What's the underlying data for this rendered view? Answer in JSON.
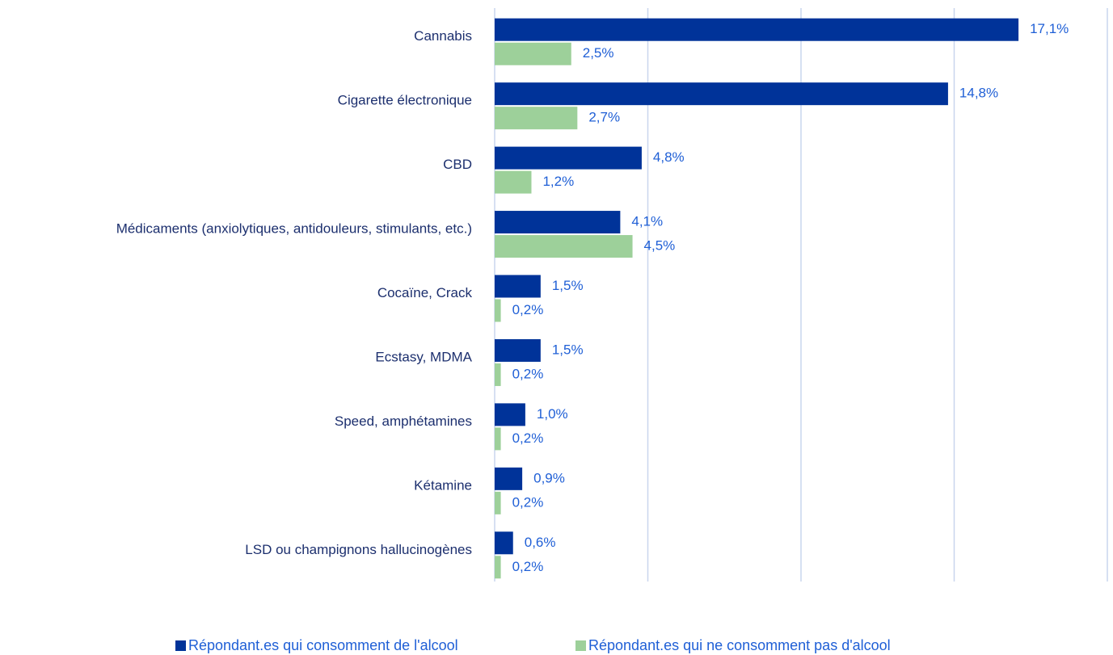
{
  "chart_data": {
    "type": "bar",
    "orientation": "horizontal",
    "categories": [
      "Cannabis",
      "Cigarette électronique",
      "CBD",
      "Médicaments (anxiolytiques, antidouleurs, stimulants, etc.)",
      "Cocaïne, Crack",
      "Ecstasy, MDMA",
      "Speed, amphétamines",
      "Kétamine",
      "LSD ou champignons hallucinogènes"
    ],
    "series": [
      {
        "name": "Répondant.es qui consomment de l'alcool",
        "color": "#003399",
        "values": [
          17.1,
          14.8,
          4.8,
          4.1,
          1.5,
          1.5,
          1.0,
          0.9,
          0.6
        ],
        "value_labels": [
          "17,1%",
          "14,8%",
          "4,8%",
          "4,1%",
          "1,5%",
          "1,5%",
          "1,0%",
          "0,9%",
          "0,6%"
        ]
      },
      {
        "name": "Répondant.es qui ne consomment pas d'alcool",
        "color": "#9dd09a",
        "values": [
          2.5,
          2.7,
          1.2,
          4.5,
          0.2,
          0.2,
          0.2,
          0.2,
          0.2
        ],
        "value_labels": [
          "2,5%",
          "2,7%",
          "1,2%",
          "4,5%",
          "0,2%",
          "0,2%",
          "0,2%",
          "0,2%",
          "0,2%"
        ]
      }
    ],
    "xlim": [
      0,
      20
    ],
    "xticks": [
      0,
      5,
      10,
      15,
      20
    ],
    "grid": true,
    "legend": "bottom"
  }
}
